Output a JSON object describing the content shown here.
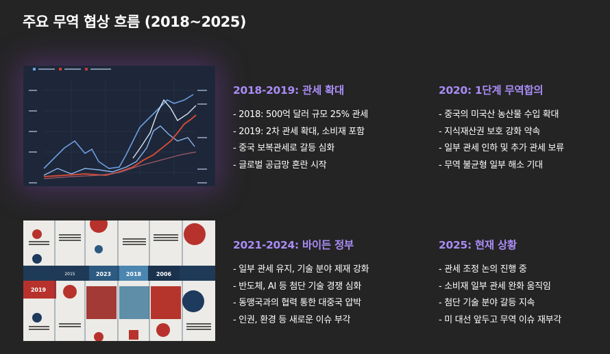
{
  "page": {
    "title": "주요 무역 협상 흐름 (2018~2025)"
  },
  "sections": [
    {
      "heading": "2018-2019: 관세 확대",
      "items": [
        "- 2018: 500억 달러 규모 25% 관세",
        "- 2019: 2차 관세 확대, 소비재 포함",
        "- 중국 보복관세로 갈등 심화",
        "- 글로벌 공급망 혼란 시작"
      ]
    },
    {
      "heading": "2020: 1단계 무역합의",
      "items": [
        "- 중국의 미국산 농산물 수입 확대",
        "- 지식재산권 보호 강화 약속",
        "- 일부 관세 인하 및 추가 관세 보류",
        "- 무역 불균형 일부 해소 기대"
      ]
    },
    {
      "heading": "2021-2024: 바이든 정부",
      "items": [
        "- 일부 관세 유지, 기술 분야 제재 강화",
        "- 반도체, AI 등 첨단 기술 경쟁 심화",
        "- 동맹국과의 협력 통한 대중국 압박",
        "- 인권, 환경 등 새로운 이슈 부각"
      ]
    },
    {
      "heading": "2025: 현재 상황",
      "items": [
        "- 관세 조정 논의 진행 중",
        "- 소비재 일부 관세 완화 움직임",
        "- 첨단 기술 분야 갈등 지속",
        "- 미 대선 앞두고 무역 이슈 재부각"
      ]
    }
  ],
  "image2": {
    "years": [
      "2019",
      "2015",
      "2023",
      "2018",
      "2006"
    ]
  },
  "colors": {
    "accent": "#a98cf5",
    "background": "#242424"
  }
}
